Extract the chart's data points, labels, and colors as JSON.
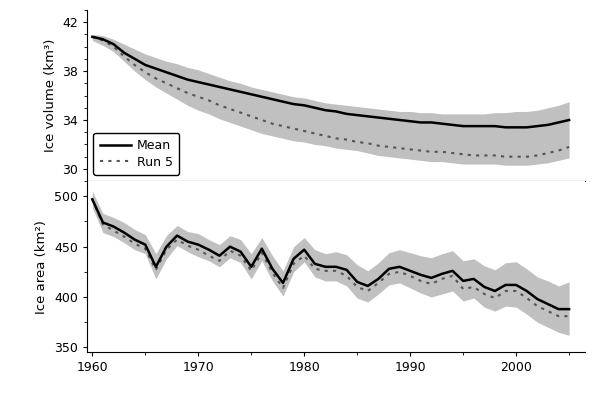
{
  "years": [
    1960,
    1961,
    1962,
    1963,
    1964,
    1965,
    1966,
    1967,
    1968,
    1969,
    1970,
    1971,
    1972,
    1973,
    1974,
    1975,
    1976,
    1977,
    1978,
    1979,
    1980,
    1981,
    1982,
    1983,
    1984,
    1985,
    1986,
    1987,
    1988,
    1989,
    1990,
    1991,
    1992,
    1993,
    1994,
    1995,
    1996,
    1997,
    1998,
    1999,
    2000,
    2001,
    2002,
    2003,
    2004,
    2005
  ],
  "vol_mean": [
    40.8,
    40.6,
    40.2,
    39.5,
    39.0,
    38.5,
    38.2,
    37.9,
    37.6,
    37.3,
    37.1,
    36.9,
    36.7,
    36.5,
    36.3,
    36.1,
    35.9,
    35.7,
    35.5,
    35.3,
    35.2,
    35.0,
    34.8,
    34.7,
    34.5,
    34.4,
    34.3,
    34.2,
    34.1,
    34.0,
    33.9,
    33.8,
    33.8,
    33.7,
    33.6,
    33.5,
    33.5,
    33.5,
    33.5,
    33.4,
    33.4,
    33.4,
    33.5,
    33.6,
    33.8,
    34.0
  ],
  "vol_run5": [
    40.8,
    40.5,
    40.0,
    39.2,
    38.5,
    37.9,
    37.4,
    37.0,
    36.6,
    36.2,
    35.9,
    35.6,
    35.2,
    34.9,
    34.6,
    34.3,
    34.0,
    33.7,
    33.5,
    33.3,
    33.1,
    32.9,
    32.7,
    32.5,
    32.4,
    32.2,
    32.1,
    31.9,
    31.8,
    31.7,
    31.6,
    31.5,
    31.4,
    31.4,
    31.3,
    31.2,
    31.1,
    31.1,
    31.1,
    31.0,
    31.0,
    31.0,
    31.1,
    31.3,
    31.5,
    31.8
  ],
  "vol_upper": [
    41.0,
    40.9,
    40.6,
    40.2,
    39.8,
    39.4,
    39.1,
    38.8,
    38.6,
    38.3,
    38.1,
    37.8,
    37.5,
    37.2,
    37.0,
    36.7,
    36.5,
    36.3,
    36.1,
    35.9,
    35.8,
    35.6,
    35.4,
    35.3,
    35.2,
    35.1,
    35.0,
    34.9,
    34.8,
    34.7,
    34.7,
    34.6,
    34.6,
    34.5,
    34.5,
    34.5,
    34.5,
    34.5,
    34.6,
    34.6,
    34.7,
    34.7,
    34.8,
    35.0,
    35.2,
    35.5
  ],
  "vol_lower": [
    40.5,
    40.1,
    39.6,
    38.8,
    38.0,
    37.3,
    36.7,
    36.2,
    35.7,
    35.2,
    34.8,
    34.5,
    34.1,
    33.8,
    33.5,
    33.2,
    32.9,
    32.7,
    32.5,
    32.3,
    32.2,
    32.0,
    31.9,
    31.7,
    31.6,
    31.5,
    31.3,
    31.1,
    31.0,
    30.9,
    30.8,
    30.7,
    30.6,
    30.6,
    30.5,
    30.4,
    30.4,
    30.4,
    30.4,
    30.3,
    30.3,
    30.3,
    30.4,
    30.5,
    30.7,
    30.9
  ],
  "area_mean": [
    497,
    474,
    470,
    464,
    457,
    452,
    430,
    450,
    461,
    455,
    452,
    447,
    441,
    450,
    445,
    430,
    448,
    428,
    414,
    438,
    447,
    433,
    430,
    430,
    427,
    415,
    411,
    418,
    428,
    430,
    426,
    422,
    419,
    423,
    426,
    416,
    418,
    410,
    406,
    412,
    412,
    406,
    398,
    393,
    388,
    388
  ],
  "area_run5": [
    497,
    472,
    466,
    460,
    453,
    448,
    427,
    447,
    457,
    451,
    447,
    441,
    436,
    446,
    441,
    426,
    444,
    424,
    409,
    433,
    441,
    428,
    426,
    426,
    421,
    410,
    406,
    414,
    423,
    425,
    421,
    416,
    413,
    418,
    421,
    408,
    410,
    403,
    399,
    406,
    406,
    399,
    391,
    386,
    381,
    381
  ],
  "area_upper": [
    505,
    483,
    479,
    474,
    467,
    462,
    443,
    461,
    471,
    465,
    463,
    457,
    452,
    461,
    457,
    443,
    459,
    441,
    426,
    450,
    459,
    447,
    443,
    445,
    442,
    432,
    426,
    434,
    444,
    447,
    444,
    441,
    439,
    443,
    446,
    436,
    438,
    431,
    427,
    434,
    435,
    428,
    420,
    416,
    411,
    415
  ],
  "area_lower": [
    489,
    464,
    460,
    454,
    447,
    443,
    418,
    438,
    451,
    445,
    440,
    436,
    430,
    439,
    434,
    418,
    436,
    416,
    401,
    425,
    435,
    420,
    416,
    416,
    411,
    399,
    395,
    403,
    412,
    414,
    409,
    404,
    400,
    403,
    406,
    396,
    399,
    390,
    386,
    391,
    390,
    383,
    375,
    370,
    365,
    362
  ],
  "vol_ylim": [
    29,
    43
  ],
  "vol_yticks": [
    30,
    34,
    38,
    42
  ],
  "area_ylim": [
    345,
    515
  ],
  "area_yticks": [
    350,
    400,
    450,
    500
  ],
  "xlim": [
    1959.5,
    2006.5
  ],
  "xticks": [
    1960,
    1970,
    1980,
    1990,
    2000
  ],
  "shade_color": "#c0c0c0",
  "line_color": "#000000",
  "run5_color": "#555555",
  "vol_ylabel": "Ice volume (km³)",
  "area_ylabel": "Ice area (km²)",
  "legend_mean": "Mean",
  "legend_run5": "Run 5",
  "bg_color": "#ffffff"
}
